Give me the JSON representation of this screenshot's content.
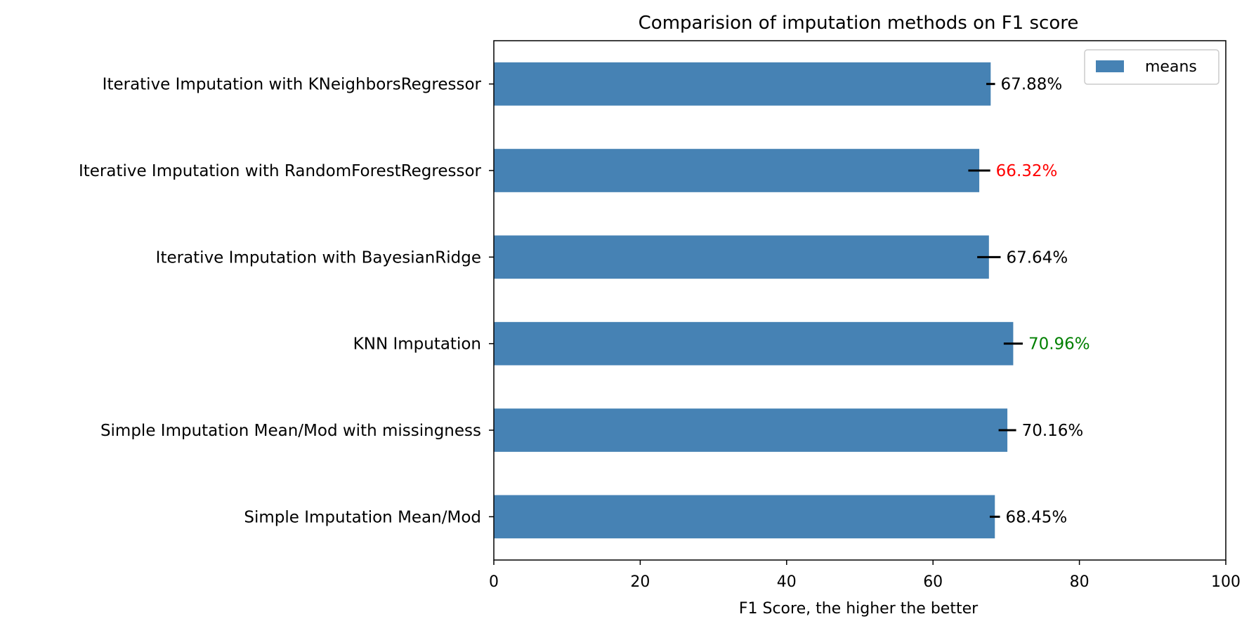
{
  "chart_data": {
    "type": "bar",
    "orientation": "horizontal",
    "title": "Comparision of imputation methods on F1 score",
    "xlabel": "F1 Score, the higher the better",
    "ylabel": "",
    "xlim": [
      0,
      100
    ],
    "xticks": [
      0,
      20,
      40,
      60,
      80,
      100
    ],
    "grid": false,
    "legend": {
      "position": "top-right",
      "entries": [
        "means"
      ]
    },
    "bar_color": "#4682b4",
    "errorbar_color": "#000000",
    "categories": [
      "Iterative Imputation with KNeighborsRegressor",
      "Iterative Imputation with RandomForestRegressor",
      "Iterative Imputation with BayesianRidge",
      "KNN Imputation",
      "Simple Imputation Mean/Mod with missingness",
      "Simple Imputation Mean/Mod"
    ],
    "series": [
      {
        "name": "means",
        "values": [
          67.88,
          66.32,
          67.64,
          70.96,
          70.16,
          68.45
        ],
        "errors": [
          0.6,
          1.5,
          1.6,
          1.3,
          1.2,
          0.7
        ]
      }
    ],
    "data_labels": [
      "67.88%",
      "66.32%",
      "67.64%",
      "70.96%",
      "70.16%",
      "68.45%"
    ],
    "label_colors": [
      "#000000",
      "#ff0000",
      "#000000",
      "#008000",
      "#000000",
      "#000000"
    ]
  }
}
